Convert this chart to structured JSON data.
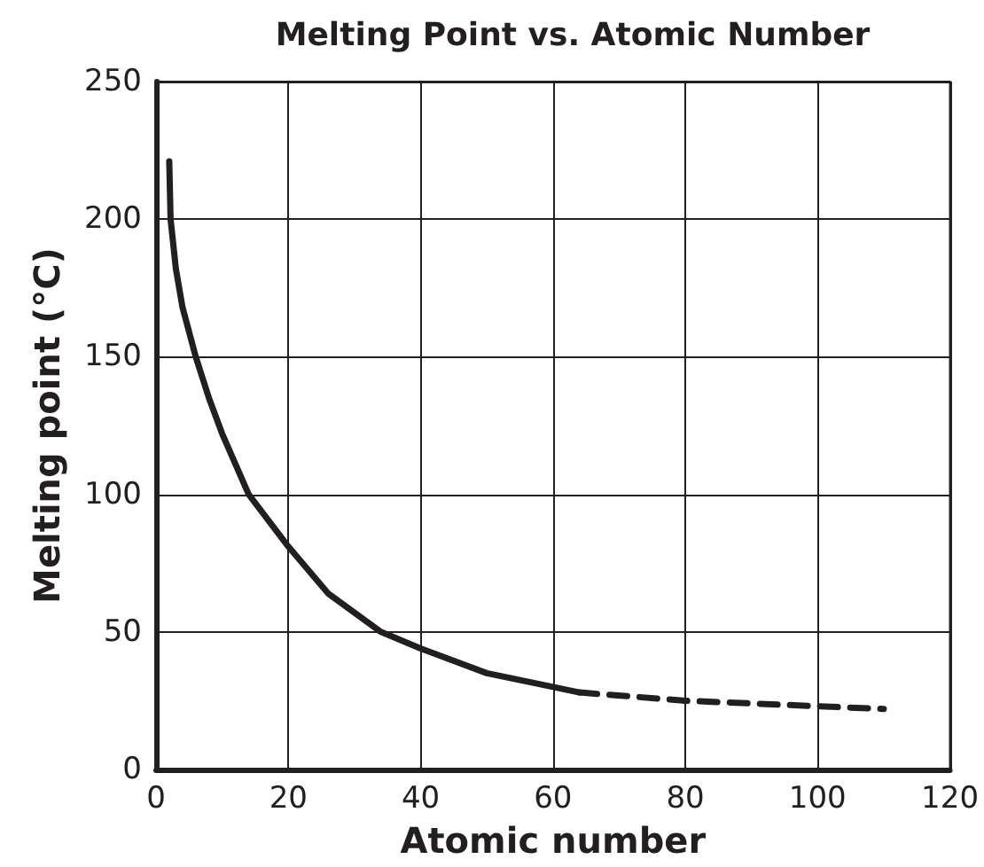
{
  "chart_data": {
    "type": "line",
    "title": "Melting Point vs. Atomic Number",
    "xlabel": "Atomic number",
    "ylabel": "Melting point (°C)",
    "xlim": [
      0,
      120
    ],
    "xticks": [
      0,
      20,
      40,
      60,
      80,
      100,
      120
    ],
    "ylim": [
      0,
      250
    ],
    "yticks": [
      0,
      50,
      100,
      150,
      200,
      250
    ],
    "grid": true,
    "marker": "none",
    "series": [
      {
        "color": "#231f20",
        "line_style": "solid",
        "x": [
          2,
          2.2,
          3,
          4,
          6,
          8,
          10,
          14,
          20,
          26,
          34,
          40,
          50,
          60,
          64
        ],
        "values": [
          221,
          200,
          182,
          168,
          150,
          135,
          122,
          100,
          81,
          64,
          50,
          44,
          35,
          30,
          28
        ]
      },
      {
        "color": "#231f20",
        "line_style": "dashed",
        "x": [
          64,
          80,
          100,
          110
        ],
        "values": [
          28,
          25,
          23,
          22
        ]
      }
    ]
  }
}
